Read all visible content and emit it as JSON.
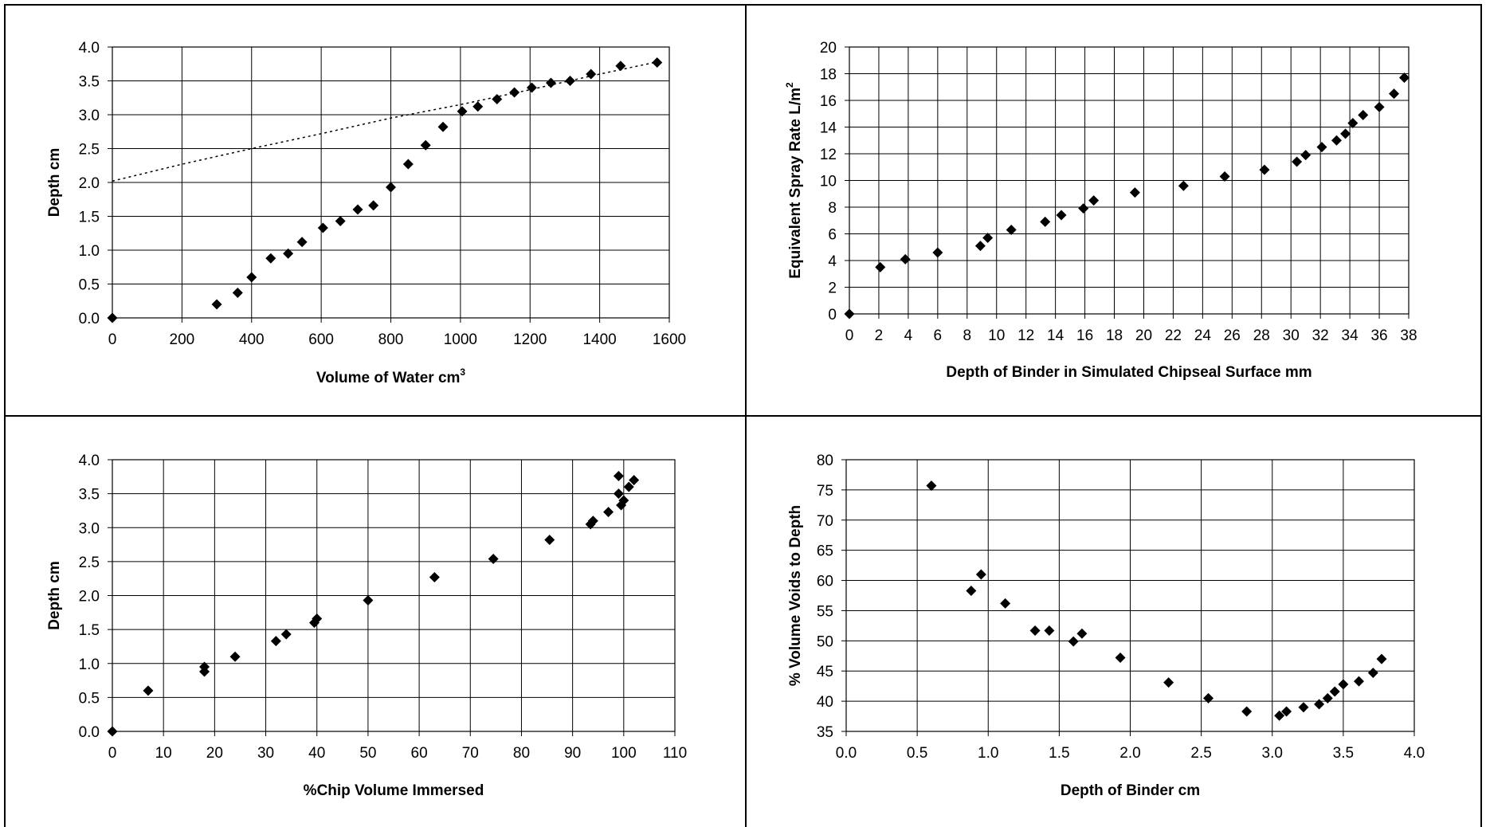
{
  "chart_data": [
    {
      "type": "scatter",
      "xlabel": "Volume of Water cm",
      "xlabel_sup": "3",
      "ylabel": "Depth cm",
      "xlim": [
        0,
        1600
      ],
      "ylim": [
        0,
        4.0
      ],
      "x_ticks": [
        "0",
        "200",
        "400",
        "600",
        "800",
        "1000",
        "1200",
        "1400",
        "1600"
      ],
      "y_ticks": [
        "0.0",
        "0.5",
        "1.0",
        "1.5",
        "2.0",
        "2.5",
        "3.0",
        "3.5",
        "4.0"
      ],
      "grid": true,
      "legend": "none",
      "marker_color": "#000000",
      "points": [
        [
          0,
          0
        ],
        [
          300,
          0.2
        ],
        [
          360,
          0.37
        ],
        [
          400,
          0.6
        ],
        [
          455,
          0.88
        ],
        [
          505,
          0.95
        ],
        [
          545,
          1.12
        ],
        [
          605,
          1.33
        ],
        [
          655,
          1.43
        ],
        [
          705,
          1.6
        ],
        [
          750,
          1.66
        ],
        [
          800,
          1.93
        ],
        [
          850,
          2.27
        ],
        [
          900,
          2.55
        ],
        [
          950,
          2.82
        ],
        [
          1005,
          3.05
        ],
        [
          1050,
          3.12
        ],
        [
          1105,
          3.23
        ],
        [
          1155,
          3.33
        ],
        [
          1205,
          3.4
        ],
        [
          1260,
          3.47
        ],
        [
          1315,
          3.5
        ],
        [
          1375,
          3.6
        ],
        [
          1460,
          3.72
        ],
        [
          1565,
          3.77
        ]
      ],
      "trend": [
        [
          0,
          2.02
        ],
        [
          200,
          2.27
        ],
        [
          400,
          2.5
        ],
        [
          600,
          2.72
        ],
        [
          800,
          2.95
        ],
        [
          1000,
          3.15
        ],
        [
          1200,
          3.37
        ],
        [
          1400,
          3.6
        ],
        [
          1565,
          3.78
        ]
      ]
    },
    {
      "type": "scatter",
      "xlabel": "Depth of Binder in Simulated Chipseal Surface mm",
      "ylabel": "Equivalent Spray Rate L/m",
      "ylabel_sup": "2",
      "xlim": [
        0,
        38
      ],
      "ylim": [
        0,
        20
      ],
      "x_ticks": [
        "0",
        "2",
        "4",
        "6",
        "8",
        "10",
        "12",
        "14",
        "16",
        "18",
        "20",
        "22",
        "24",
        "26",
        "28",
        "30",
        "32",
        "34",
        "36",
        "38"
      ],
      "y_ticks": [
        "0",
        "2",
        "4",
        "6",
        "8",
        "10",
        "12",
        "14",
        "16",
        "18",
        "20"
      ],
      "grid": true,
      "legend": "none",
      "marker_color": "#000000",
      "points": [
        [
          0,
          0
        ],
        [
          2.1,
          3.5
        ],
        [
          3.8,
          4.1
        ],
        [
          6.0,
          4.6
        ],
        [
          8.9,
          5.1
        ],
        [
          9.4,
          5.7
        ],
        [
          11.0,
          6.3
        ],
        [
          13.3,
          6.9
        ],
        [
          14.4,
          7.4
        ],
        [
          15.9,
          7.9
        ],
        [
          16.6,
          8.5
        ],
        [
          19.4,
          9.1
        ],
        [
          22.7,
          9.6
        ],
        [
          25.5,
          10.3
        ],
        [
          28.2,
          10.8
        ],
        [
          30.4,
          11.4
        ],
        [
          31.0,
          11.9
        ],
        [
          32.1,
          12.5
        ],
        [
          33.1,
          13.0
        ],
        [
          33.7,
          13.5
        ],
        [
          34.2,
          14.3
        ],
        [
          34.9,
          14.9
        ],
        [
          36.0,
          15.5
        ],
        [
          37.0,
          16.5
        ],
        [
          37.7,
          17.7
        ]
      ]
    },
    {
      "type": "scatter",
      "xlabel": "%Chip Volume Immersed",
      "ylabel": "Depth cm",
      "xlim": [
        0,
        110
      ],
      "ylim": [
        0,
        4.0
      ],
      "x_ticks": [
        "0",
        "10",
        "20",
        "30",
        "40",
        "50",
        "60",
        "70",
        "80",
        "90",
        "100",
        "110"
      ],
      "y_ticks": [
        "0.0",
        "0.5",
        "1.0",
        "1.5",
        "2.0",
        "2.5",
        "3.0",
        "3.5",
        "4.0"
      ],
      "grid": true,
      "legend": "none",
      "marker_color": "#000000",
      "points": [
        [
          0,
          0
        ],
        [
          7,
          0.6
        ],
        [
          18,
          0.88
        ],
        [
          18,
          0.95
        ],
        [
          24,
          1.1
        ],
        [
          32,
          1.33
        ],
        [
          34,
          1.43
        ],
        [
          39.5,
          1.6
        ],
        [
          40,
          1.66
        ],
        [
          50,
          1.93
        ],
        [
          63,
          2.27
        ],
        [
          74.5,
          2.54
        ],
        [
          85.5,
          2.82
        ],
        [
          93.5,
          3.05
        ],
        [
          94,
          3.1
        ],
        [
          97,
          3.23
        ],
        [
          99.5,
          3.33
        ],
        [
          100,
          3.4
        ],
        [
          99,
          3.5
        ],
        [
          101,
          3.6
        ],
        [
          102,
          3.7
        ],
        [
          99,
          3.76
        ]
      ]
    },
    {
      "type": "scatter",
      "xlabel": "Depth of Binder cm",
      "ylabel": "% Volume Voids to Depth",
      "xlim": [
        0,
        4.0
      ],
      "ylim": [
        35,
        80
      ],
      "x_ticks": [
        "0.0",
        "0.5",
        "1.0",
        "1.5",
        "2.0",
        "2.5",
        "3.0",
        "3.5",
        "4.0"
      ],
      "y_ticks": [
        "35",
        "40",
        "45",
        "50",
        "55",
        "60",
        "65",
        "70",
        "75",
        "80"
      ],
      "grid": true,
      "legend": "none",
      "marker_color": "#000000",
      "points": [
        [
          0.6,
          75.7
        ],
        [
          0.88,
          58.3
        ],
        [
          0.95,
          61.0
        ],
        [
          1.12,
          56.2
        ],
        [
          1.33,
          51.7
        ],
        [
          1.43,
          51.7
        ],
        [
          1.6,
          49.9
        ],
        [
          1.66,
          51.2
        ],
        [
          1.93,
          47.2
        ],
        [
          2.27,
          43.1
        ],
        [
          2.55,
          40.5
        ],
        [
          2.82,
          38.3
        ],
        [
          3.05,
          37.6
        ],
        [
          3.1,
          38.3
        ],
        [
          3.22,
          39.0
        ],
        [
          3.33,
          39.5
        ],
        [
          3.39,
          40.5
        ],
        [
          3.44,
          41.6
        ],
        [
          3.5,
          42.8
        ],
        [
          3.61,
          43.3
        ],
        [
          3.71,
          44.7
        ],
        [
          3.77,
          47.0
        ]
      ]
    }
  ]
}
